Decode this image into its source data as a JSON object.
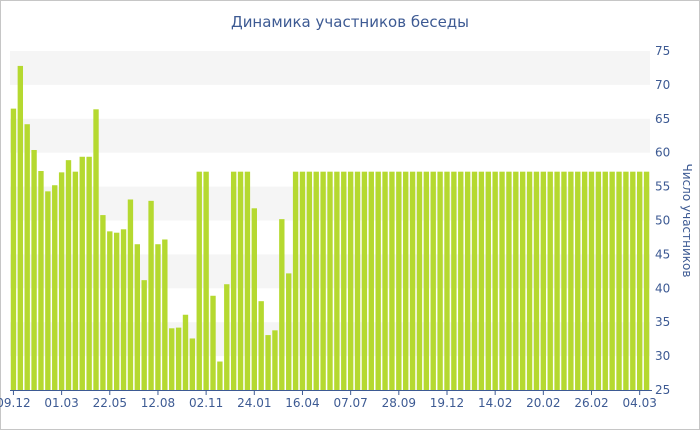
{
  "chart_data": {
    "type": "bar",
    "title": "Динамика участников беседы",
    "xlabel": "",
    "ylabel": "Число участников",
    "ylim": [
      25,
      75
    ],
    "yticks": [
      25,
      30,
      35,
      40,
      45,
      50,
      55,
      60,
      65,
      70,
      75
    ],
    "grid": "alternating horizontal bands",
    "bar_color": "#b5d930",
    "band_color": "#f5f5f5",
    "axis_color": "#3d5a93",
    "xtick_labels": [
      {
        "index": 0,
        "label": "09.12"
      },
      {
        "index": 7,
        "label": "01.03"
      },
      {
        "index": 14,
        "label": "22.05"
      },
      {
        "index": 21,
        "label": "12.08"
      },
      {
        "index": 28,
        "label": "02.11"
      },
      {
        "index": 35,
        "label": "24.01"
      },
      {
        "index": 42,
        "label": "16.04"
      },
      {
        "index": 49,
        "label": "07.07"
      },
      {
        "index": 56,
        "label": "28.09"
      },
      {
        "index": 63,
        "label": "19.12"
      },
      {
        "index": 70,
        "label": "14.02"
      },
      {
        "index": 77,
        "label": "20.02"
      },
      {
        "index": 84,
        "label": "26.02"
      },
      {
        "index": 91,
        "label": "04.03"
      }
    ],
    "values": [
      66.5,
      72.8,
      64.2,
      60.4,
      57.3,
      54.3,
      55.2,
      57.1,
      58.9,
      57.2,
      59.4,
      59.4,
      66.4,
      50.8,
      48.4,
      48.2,
      48.7,
      53.1,
      46.5,
      41.2,
      52.9,
      46.5,
      47.2,
      34.1,
      34.2,
      36.1,
      32.6,
      57.2,
      57.2,
      38.9,
      29.2,
      40.6,
      57.2,
      57.2,
      57.2,
      51.8,
      38.1,
      33.1,
      33.8,
      50.2,
      42.2,
      57.2,
      57.2,
      57.2,
      57.2,
      57.2,
      57.2,
      57.2,
      57.2,
      57.2,
      57.2,
      57.2,
      57.2,
      57.2,
      57.2,
      57.2,
      57.2,
      57.2,
      57.2,
      57.2,
      57.2,
      57.2,
      57.2,
      57.2,
      57.2,
      57.2,
      57.2,
      57.2,
      57.2,
      57.2,
      57.2,
      57.2,
      57.2,
      57.2,
      57.2,
      57.2,
      57.2,
      57.2,
      57.2,
      57.2,
      57.2,
      57.2,
      57.2,
      57.2,
      57.2,
      57.2,
      57.2,
      57.2,
      57.2,
      57.2,
      57.2,
      57.2,
      57.2
    ]
  }
}
